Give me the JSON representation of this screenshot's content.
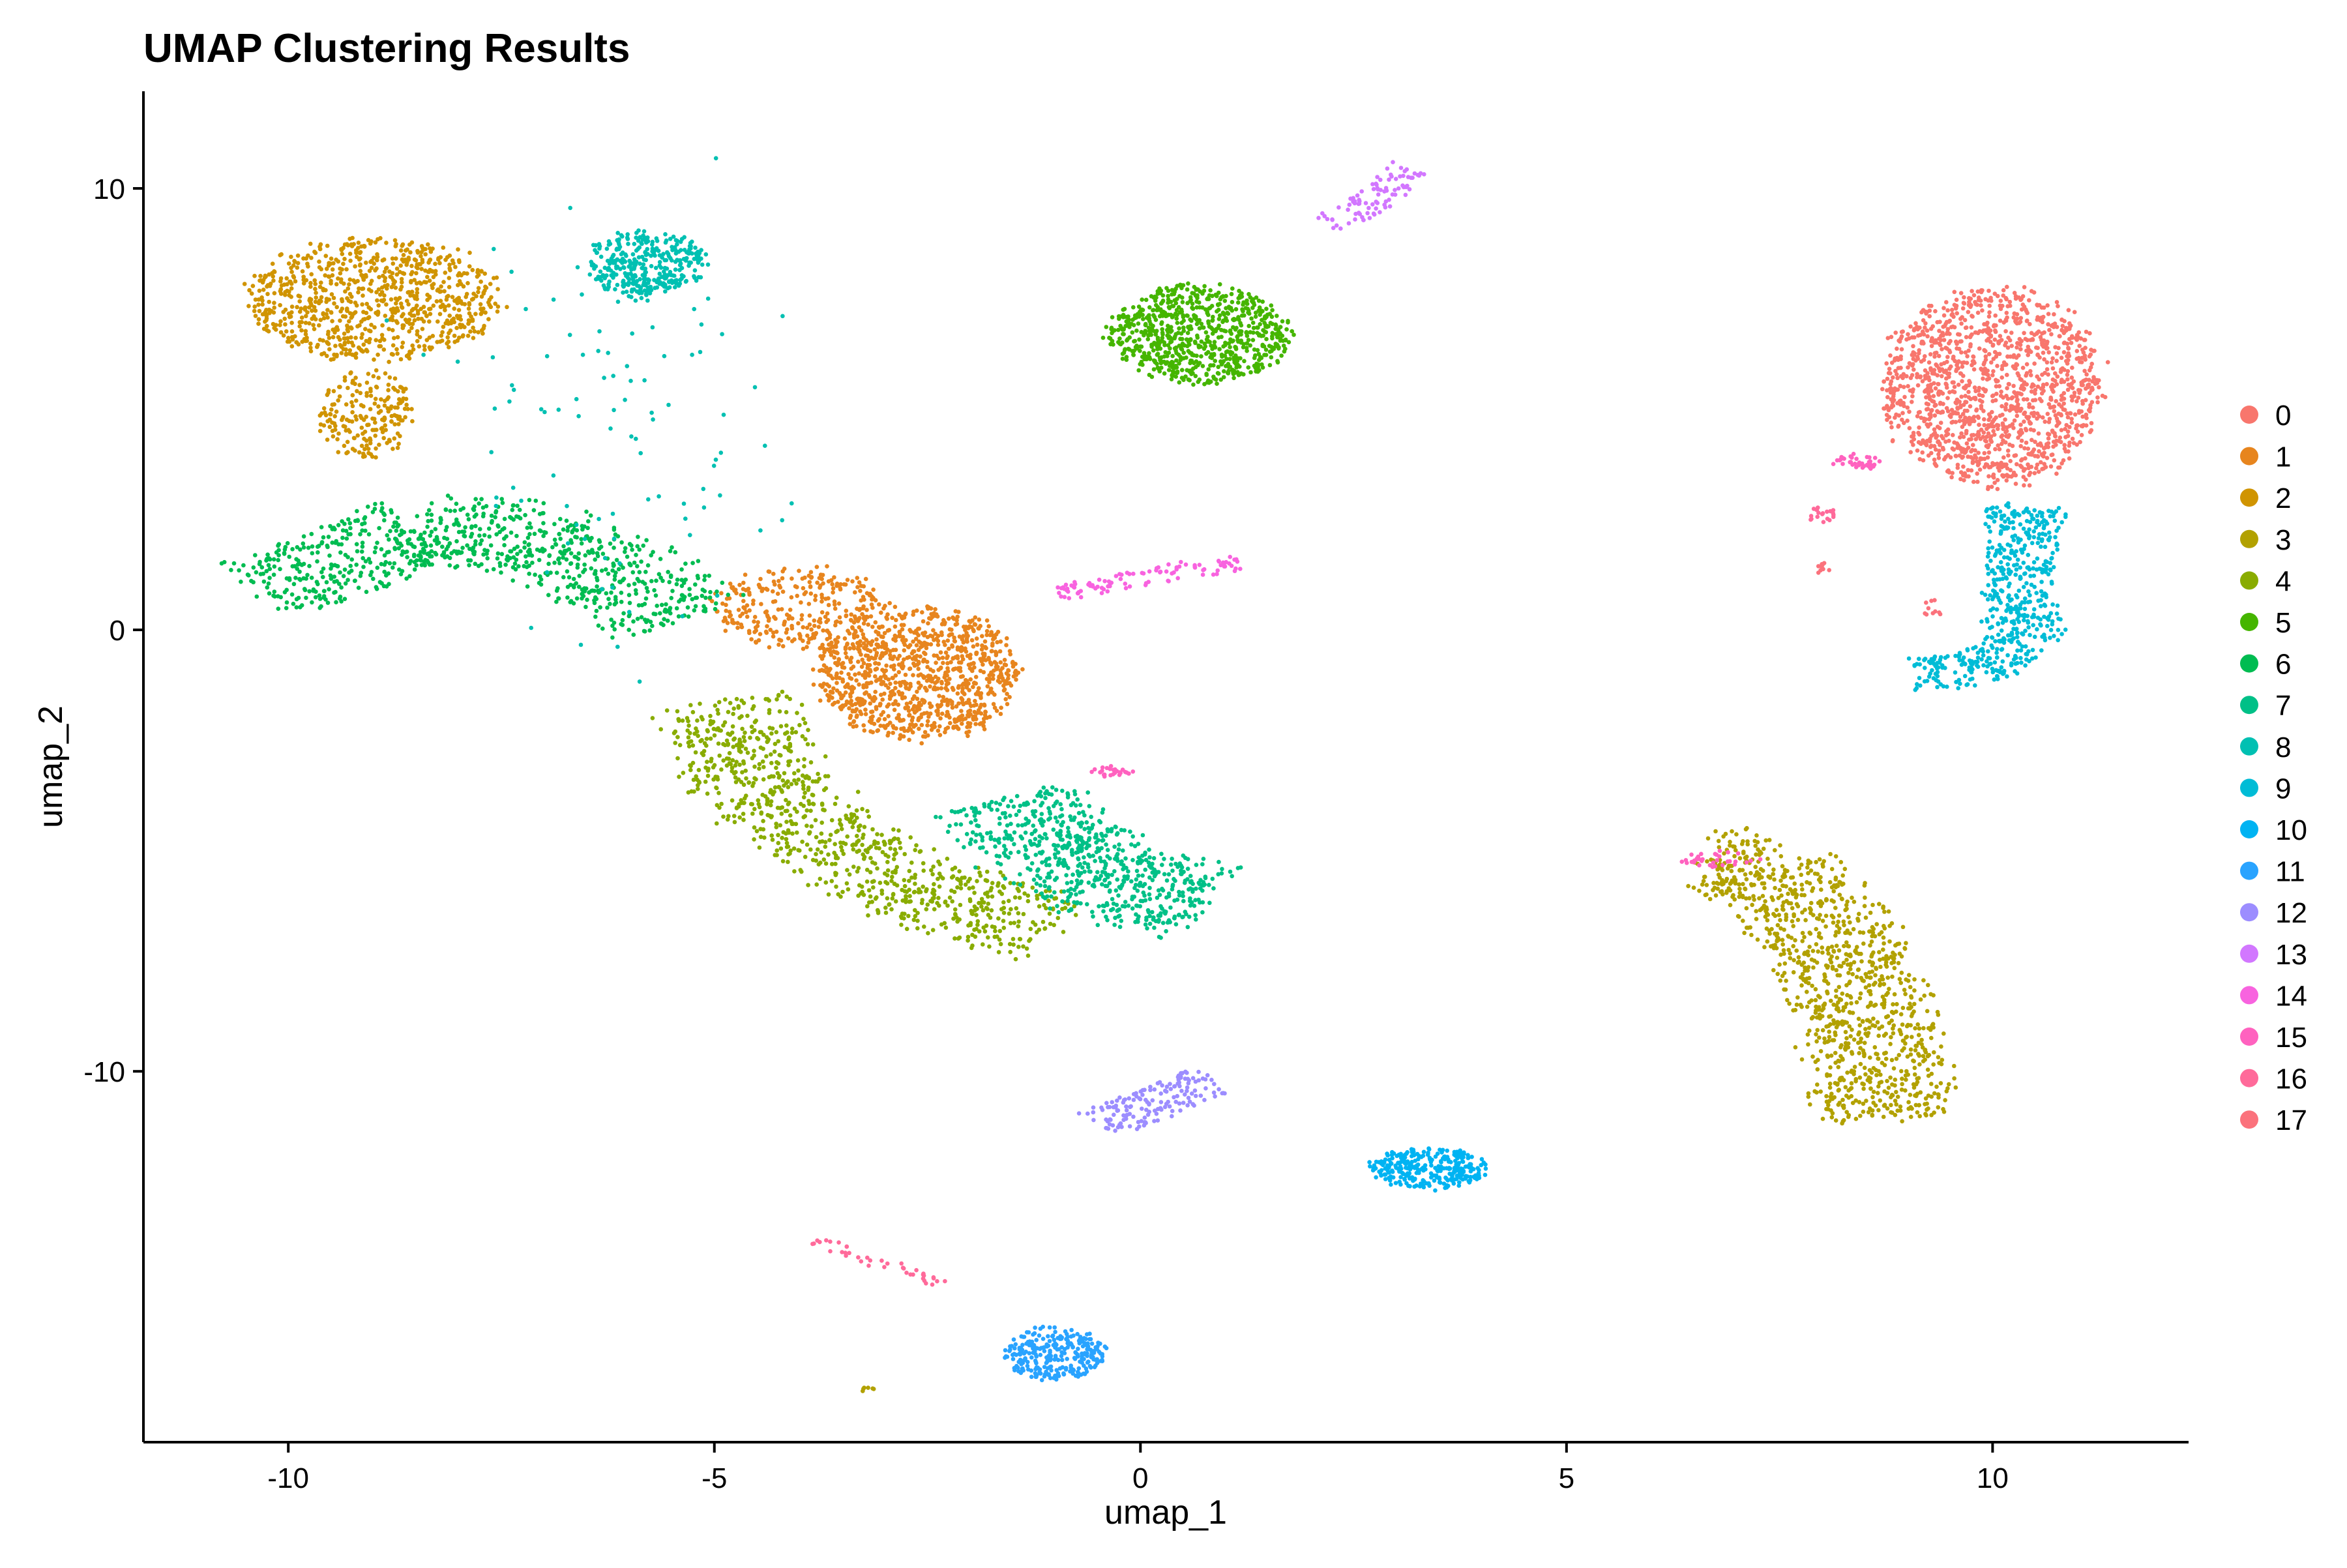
{
  "chart_data": {
    "type": "scatter",
    "title": "UMAP Clustering Results",
    "xlabel": "umap_1",
    "ylabel": "umap_2",
    "xlim": [
      -11.7,
      12.3
    ],
    "ylim": [
      -18.4,
      12.2
    ],
    "xticks": [
      -10,
      -5,
      0,
      5,
      10
    ],
    "yticks": [
      10,
      0,
      -10
    ],
    "grid": false,
    "legend_position": "right",
    "clusters": [
      {
        "name": "0",
        "color": "#F8766D",
        "groups": [
          {
            "type": "blob",
            "center": [
              10.0,
              5.5
            ],
            "radius": [
              1.4,
              2.4
            ],
            "n": 1400
          }
        ]
      },
      {
        "name": "1",
        "color": "#E7851E",
        "groups": [
          {
            "type": "blob",
            "center": [
              -2.6,
              -1.0
            ],
            "radius": [
              1.3,
              1.6
            ],
            "n": 1000
          },
          {
            "type": "blob",
            "center": [
              -4.0,
              0.5
            ],
            "radius": [
              1.1,
              1.0
            ],
            "n": 300
          }
        ]
      },
      {
        "name": "2",
        "color": "#D09400",
        "groups": [
          {
            "type": "blob",
            "center": [
              -9.0,
              7.5
            ],
            "radius": [
              1.6,
              1.5
            ],
            "n": 850
          },
          {
            "type": "blob",
            "center": [
              -9.1,
              4.9
            ],
            "radius": [
              0.6,
              1.1
            ],
            "n": 200
          }
        ]
      },
      {
        "name": "3",
        "color": "#B2A100",
        "groups": [
          {
            "type": "path",
            "points": [
              [
                6.6,
                -5.2
              ],
              [
                7.3,
                -5.4
              ],
              [
                8.1,
                -6.8
              ],
              [
                8.5,
                -8.6
              ],
              [
                8.7,
                -10.2
              ],
              [
                8.7,
                -11.1
              ]
            ],
            "width": 0.75,
            "n": 1100
          },
          {
            "type": "blob",
            "center": [
              -3.2,
              -17.2
            ],
            "radius": [
              0.1,
              0.06
            ],
            "n": 6
          }
        ]
      },
      {
        "name": "4",
        "color": "#89AC00",
        "groups": [
          {
            "type": "path",
            "points": [
              [
                -4.9,
                -1.6
              ],
              [
                -4.4,
                -3.6
              ],
              [
                -3.4,
                -5.2
              ],
              [
                -2.2,
                -6.2
              ],
              [
                -1.0,
                -6.8
              ]
            ],
            "width": 0.75,
            "n": 900
          }
        ]
      },
      {
        "name": "5",
        "color": "#45B500",
        "groups": [
          {
            "type": "blob",
            "center": [
              0.7,
              6.7
            ],
            "radius": [
              1.15,
              1.2
            ],
            "n": 800
          }
        ]
      },
      {
        "name": "6",
        "color": "#00BC51",
        "groups": [
          {
            "type": "path",
            "points": [
              [
                -10.3,
                0.9
              ],
              [
                -9.3,
                1.6
              ],
              [
                -8.5,
                2.3
              ],
              [
                -7.2,
                2.1
              ],
              [
                -6.0,
                1.1
              ],
              [
                -5.4,
                0.2
              ]
            ],
            "width": 0.75,
            "n": 900
          }
        ]
      },
      {
        "name": "7",
        "color": "#00C087",
        "groups": [
          {
            "type": "path",
            "points": [
              [
                -1.6,
                -3.8
              ],
              [
                -1.0,
                -5.0
              ],
              [
                -0.2,
                -5.8
              ],
              [
                0.8,
                -6.2
              ]
            ],
            "width": 0.8,
            "n": 700
          }
        ]
      },
      {
        "name": "8",
        "color": "#00C0B2",
        "groups": [
          {
            "type": "blob",
            "center": [
              -5.8,
              8.3
            ],
            "radius": [
              0.75,
              0.8
            ],
            "n": 350
          },
          {
            "type": "scatter",
            "center": [
              -6.0,
              4.8
            ],
            "radius": [
              1.1,
              2.5
            ],
            "n": 100
          }
        ]
      },
      {
        "name": "9",
        "color": "#00BCD6",
        "groups": [
          {
            "type": "path",
            "points": [
              [
                10.4,
                2.8
              ],
              [
                10.3,
                1.2
              ],
              [
                10.4,
                -0.3
              ],
              [
                9.8,
                -0.9
              ],
              [
                9.1,
                -1.0
              ]
            ],
            "width": 0.4,
            "n": 550
          }
        ]
      },
      {
        "name": "10",
        "color": "#00B3F2",
        "groups": [
          {
            "type": "blob",
            "center": [
              3.4,
              -12.2
            ],
            "radius": [
              0.75,
              0.5
            ],
            "n": 300
          }
        ]
      },
      {
        "name": "11",
        "color": "#29A3FF",
        "groups": [
          {
            "type": "blob",
            "center": [
              -1.0,
              -16.4
            ],
            "radius": [
              0.65,
              0.65
            ],
            "n": 280
          }
        ]
      },
      {
        "name": "12",
        "color": "#9C8DFF",
        "groups": [
          {
            "type": "path",
            "points": [
              [
                -0.5,
                -11.2
              ],
              [
                0.2,
                -10.7
              ],
              [
                0.8,
                -10.2
              ]
            ],
            "width": 0.35,
            "n": 160
          }
        ]
      },
      {
        "name": "13",
        "color": "#D277FF",
        "groups": [
          {
            "type": "path",
            "points": [
              [
                2.2,
                9.2
              ],
              [
                2.8,
                9.8
              ],
              [
                3.2,
                10.5
              ]
            ],
            "width": 0.25,
            "n": 90
          }
        ]
      },
      {
        "name": "14",
        "color": "#F863DF",
        "groups": [
          {
            "type": "path",
            "points": [
              [
                -1.0,
                0.8
              ],
              [
                0.3,
                1.3
              ],
              [
                1.2,
                1.5
              ]
            ],
            "width": 0.2,
            "n": 100
          }
        ]
      },
      {
        "name": "15",
        "color": "#FF62BF",
        "groups": [
          {
            "type": "blob",
            "center": [
              8.4,
              3.8
            ],
            "radius": [
              0.3,
              0.2
            ],
            "n": 40
          },
          {
            "type": "blob",
            "center": [
              -0.3,
              -3.2
            ],
            "radius": [
              0.3,
              0.15
            ],
            "n": 25
          },
          {
            "type": "blob",
            "center": [
              6.8,
              -5.2
            ],
            "radius": [
              0.5,
              0.2
            ],
            "n": 35
          }
        ]
      },
      {
        "name": "16",
        "color": "#FF6A9A",
        "groups": [
          {
            "type": "blob",
            "center": [
              8.0,
              2.6
            ],
            "radius": [
              0.2,
              0.2
            ],
            "n": 20
          },
          {
            "type": "path",
            "points": [
              [
                -3.8,
                -13.8
              ],
              [
                -3.3,
                -14.2
              ],
              [
                -2.3,
                -14.8
              ]
            ],
            "width": 0.12,
            "n": 40
          }
        ]
      },
      {
        "name": "17",
        "color": "#FB727C",
        "groups": [
          {
            "type": "blob",
            "center": [
              8.0,
              1.4
            ],
            "radius": [
              0.1,
              0.15
            ],
            "n": 10
          },
          {
            "type": "blob",
            "center": [
              9.3,
              0.5
            ],
            "radius": [
              0.2,
              0.2
            ],
            "n": 10
          }
        ]
      }
    ]
  }
}
